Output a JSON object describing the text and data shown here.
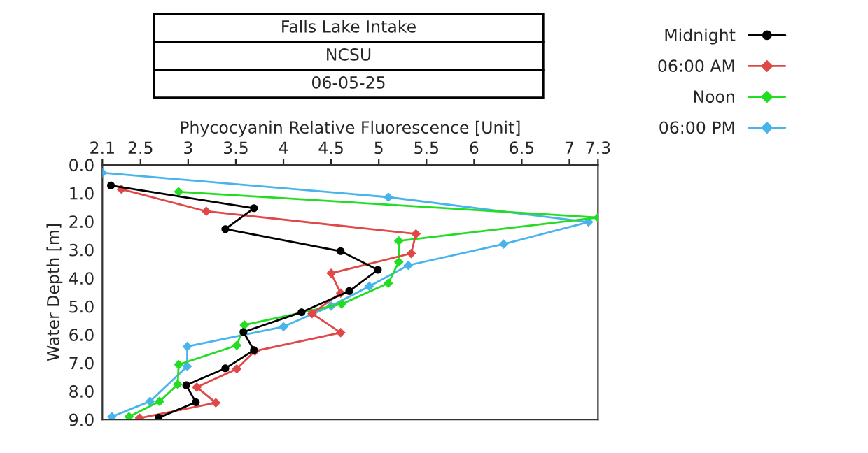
{
  "chart_data": {
    "type": "line",
    "title": "Falls Lake Intake",
    "subtitle": "NCSU",
    "annotations": [
      "06-05-25"
    ],
    "xlabel": "Phycocyanin Relative Fluorescence [Unit]",
    "ylabel": "Water Depth [m]",
    "xlim": [
      2.1,
      7.3
    ],
    "xticks": [
      2.1,
      2.5,
      3,
      3.5,
      4,
      4.5,
      5,
      5.5,
      6,
      6.5,
      7,
      7.3
    ],
    "ylim": [
      9.0,
      0.0
    ],
    "yticks": [
      {
        "value": 0,
        "label": "0.0"
      },
      {
        "value": 1,
        "label": "1.0"
      },
      {
        "value": 2,
        "label": "2.0"
      },
      {
        "value": 3,
        "label": "3.0"
      },
      {
        "value": 4,
        "label": "4.0"
      },
      {
        "value": 5,
        "label": "5.0"
      },
      {
        "value": 6,
        "label": "6.0"
      },
      {
        "value": 7,
        "label": "7.0"
      },
      {
        "value": 8,
        "label": "8.0"
      },
      {
        "value": 9,
        "label": "9.0"
      }
    ],
    "grid": false,
    "legend": "top right",
    "line_style": "solid",
    "series": [
      {
        "name": "Midnight",
        "color": "#000000",
        "marker": "circle",
        "x": [
          2.19,
          3.69,
          3.39,
          4.6,
          4.99,
          4.69,
          4.19,
          3.58,
          3.69,
          3.39,
          2.98,
          3.08,
          2.69
        ],
        "values": [
          0.73,
          1.53,
          2.27,
          3.05,
          3.71,
          4.46,
          5.21,
          5.91,
          6.55,
          7.19,
          7.79,
          8.39,
          8.94
        ]
      },
      {
        "name": "06:00 AM",
        "color": "#e04848",
        "marker": "diamond",
        "x": [
          2.3,
          3.19,
          5.39,
          5.34,
          4.5,
          4.6,
          4.3,
          4.6,
          3.7,
          3.51,
          3.09,
          3.29,
          2.49
        ],
        "values": [
          0.86,
          1.64,
          2.44,
          3.13,
          3.83,
          4.53,
          5.26,
          5.93,
          6.58,
          7.21,
          7.86,
          8.41,
          8.95
        ]
      },
      {
        "name": "Noon",
        "color": "#22dd22",
        "marker": "diamond",
        "x": [
          2.9,
          7.3,
          5.21,
          5.21,
          5.1,
          4.61,
          3.59,
          3.51,
          2.9,
          2.89,
          2.7,
          2.38
        ],
        "values": [
          0.95,
          1.86,
          2.69,
          3.43,
          4.18,
          4.92,
          5.66,
          6.38,
          7.06,
          7.76,
          8.36,
          8.9
        ]
      },
      {
        "name": "06:00 PM",
        "color": "#48b4ec",
        "marker": "diamond",
        "x": [
          2.1,
          5.1,
          7.2,
          6.31,
          5.31,
          4.9,
          4.5,
          4.0,
          2.99,
          2.99,
          2.6,
          2.2
        ],
        "values": [
          0.28,
          1.14,
          2.02,
          2.8,
          3.55,
          4.29,
          4.99,
          5.72,
          6.42,
          7.12,
          8.36,
          8.9
        ]
      }
    ]
  }
}
